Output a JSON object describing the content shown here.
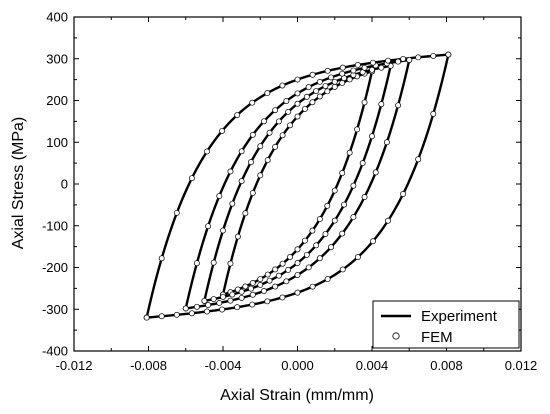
{
  "chart_data": {
    "type": "line",
    "title": "",
    "xlabel": "Axial Strain (mm/mm)",
    "ylabel": "Axial Stress (MPa)",
    "xlim": [
      -0.012,
      0.012
    ],
    "ylim": [
      -400,
      400
    ],
    "x_ticks": [
      -0.012,
      -0.008,
      -0.004,
      0.0,
      0.004,
      0.008,
      0.012
    ],
    "x_tick_labels": [
      "-0.012",
      "-0.008",
      "-0.004",
      "0.000",
      "0.004",
      "0.008",
      "0.012"
    ],
    "y_ticks": [
      -400,
      -300,
      -200,
      -100,
      0,
      100,
      200,
      300,
      400
    ],
    "y_tick_labels": [
      "-400",
      "-300",
      "-200",
      "-100",
      "0",
      "100",
      "200",
      "300",
      "400"
    ],
    "grid": false,
    "legend_position": "bottom-right",
    "loops": [
      {
        "strain_amplitude": 0.004,
        "x_max": 0.004,
        "y_max": 270,
        "x_min": -0.004,
        "y_min": -265
      },
      {
        "strain_amplitude": 0.005,
        "x_max": 0.005,
        "y_max": 283,
        "x_min": -0.005,
        "y_min": -280
      },
      {
        "strain_amplitude": 0.006,
        "x_max": 0.006,
        "y_max": 297,
        "x_min": -0.006,
        "y_min": -298
      },
      {
        "strain_amplitude": 0.008,
        "x_max": 0.0081,
        "y_max": 310,
        "x_min": -0.0081,
        "y_min": -320
      }
    ],
    "series": [
      {
        "name": "Experiment",
        "style": "solid-line",
        "color": "#000000"
      },
      {
        "name": "FEM",
        "style": "open-circle-markers",
        "color": "#000000"
      }
    ]
  }
}
